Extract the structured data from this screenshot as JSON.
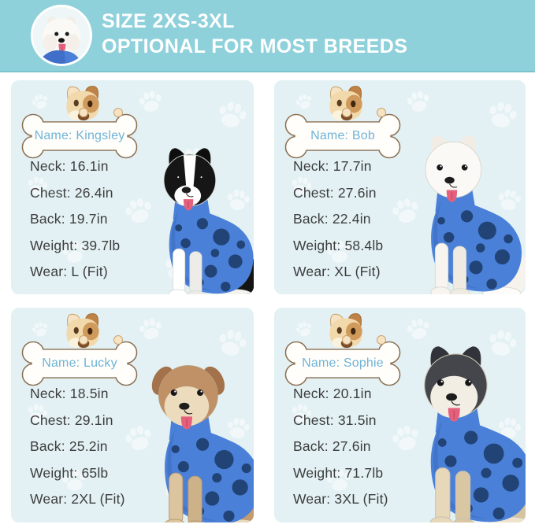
{
  "header": {
    "title_line1": "SIZE 2XS-3XL",
    "title_line2": "OPTIONAL FOR MOST BREEDS",
    "avatar": "samoyed-in-blue-recovery-suit"
  },
  "style": {
    "page_bg": "#ffffff",
    "band": "#8ed1db",
    "band_edge": "#7cc3cf",
    "title_color": "#ffffff",
    "panel_bg": "#e3f1f4",
    "paw_print": "#ffffff",
    "text": "#3d3d3d",
    "name_color": "#6fb4d8",
    "bone_stroke": "#8a6f52",
    "bone_fill": "#fffefa"
  },
  "suit": {
    "color": "#4a80d8",
    "dark": "#3a67b8",
    "dot": "#1d3e6e"
  },
  "panels": [
    {
      "name_label": "Name: Kingsley",
      "specs": [
        "Neck: 16.1in",
        "Chest: 26.4in",
        "Back: 19.7in",
        "Weight: 39.7lb",
        "Wear: L (Fit)"
      ],
      "dog": {
        "look": "border-collie",
        "ears": "pointy",
        "head": "#161616",
        "ear": "#0e0e0e",
        "blaze": "#ffffff",
        "mask": "",
        "muzzle": "#ffffff",
        "leg": "#ffffff",
        "leg2": "#edece8",
        "thigh": "#141414",
        "paw": "#f4f3ef",
        "line": "#d8dcd9"
      }
    },
    {
      "name_label": "Name: Bob",
      "specs": [
        "Neck: 17.7in",
        "Chest: 27.6in",
        "Back: 22.4in",
        "Weight: 58.4lb",
        "Wear: XL (Fit)"
      ],
      "dog": {
        "look": "samoyed",
        "ears": "pointy",
        "head": "#fbf9f5",
        "ear": "#f1ede5",
        "blaze": "",
        "mask": "",
        "muzzle": "#fbf9f5",
        "leg": "#f8f5f0",
        "leg2": "#efebe3",
        "thigh": "#f6f3ed",
        "paw": "#fdfcfa",
        "line": "#d9d9d0"
      }
    },
    {
      "name_label": "Name: Lucky",
      "specs": [
        "Neck: 18.5in",
        "Chest: 29.1in",
        "Back: 25.2in",
        "Weight: 65lb",
        "Wear: 2XL (Fit)"
      ],
      "dog": {
        "look": "tan-husky-mix",
        "ears": "floppy",
        "head": "#c09066",
        "ear": "#a3714a",
        "blaze": "",
        "mask": "#ecdcbd",
        "muzzle": "#ecdcbd",
        "leg": "#dcc49e",
        "leg2": "#cdb189",
        "thigh": "#c59a6c",
        "paw": "#e8d9ba",
        "line": "#b99c74"
      }
    },
    {
      "name_label": "Name: Sophie",
      "specs": [
        "Neck: 20.1in",
        "Chest: 31.5in",
        "Back: 27.6in",
        "Weight: 71.7lb",
        "Wear: 3XL (Fit)"
      ],
      "dog": {
        "look": "alaskan-malamute",
        "ears": "pointy",
        "head": "#45464c",
        "ear": "#323338",
        "blaze": "",
        "mask": "#f3eee4",
        "muzzle": "#f3eee4",
        "leg": "#e7d8ba",
        "leg2": "#d9c7a3",
        "thigh": "#d6c3a0",
        "paw": "#eee3cb",
        "line": "#c9c2b2"
      }
    }
  ]
}
